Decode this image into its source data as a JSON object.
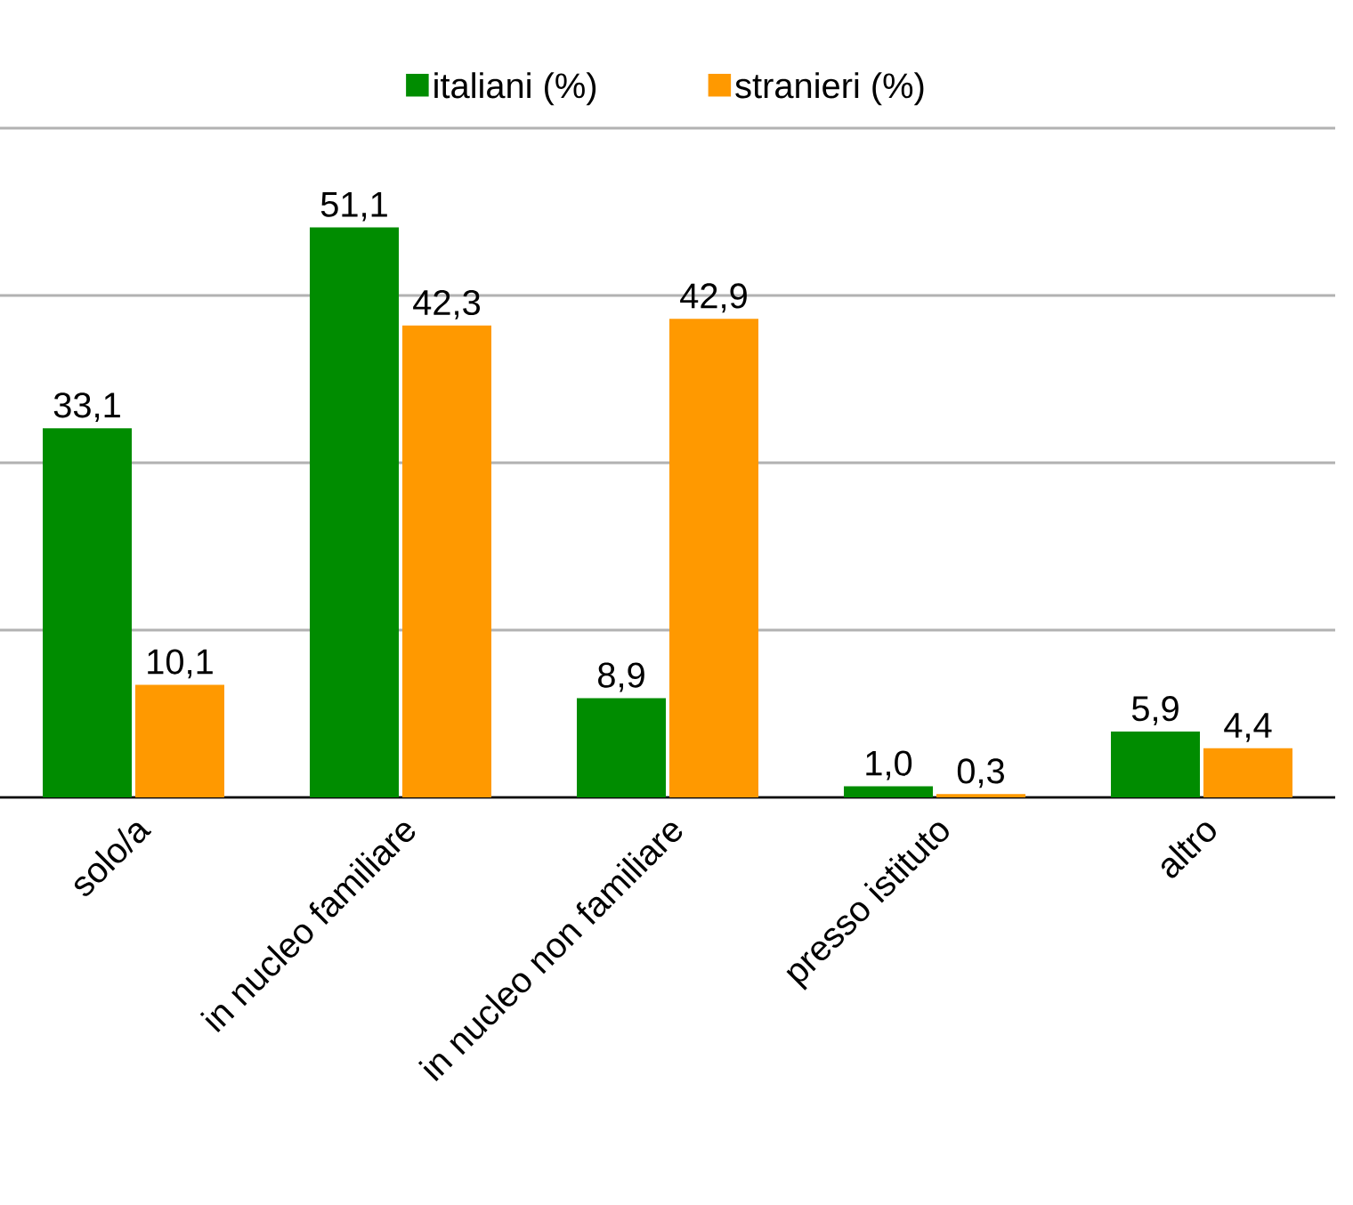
{
  "chart_data": {
    "type": "bar",
    "categories": [
      "solo/a",
      "in nucleo familiare",
      "in nucleo non familiare",
      "presso istituto",
      "altro"
    ],
    "series": [
      {
        "name": "italiani (%)",
        "color": "#008c00",
        "values": [
          33.1,
          51.1,
          8.9,
          1.0,
          5.9
        ],
        "value_labels": [
          "33,1",
          "51,1",
          "8,9",
          "1,0",
          "5,9"
        ]
      },
      {
        "name": "stranieri (%)",
        "color": "#ff9900",
        "values": [
          10.1,
          42.3,
          42.9,
          0.3,
          4.4
        ],
        "value_labels": [
          "10,1",
          "42,3",
          "42,9",
          "0,3",
          "4,4"
        ]
      }
    ],
    "ylim": [
      0,
      60
    ],
    "yticks": [
      {
        "value": 0,
        "label": null
      },
      {
        "value": 15,
        "label": null
      },
      {
        "value": 30,
        "label": null
      },
      {
        "value": 45,
        "label": null
      },
      {
        "value": 60,
        "label": null
      }
    ],
    "grid": "y",
    "legend": "top",
    "tick_labels": "x"
  }
}
